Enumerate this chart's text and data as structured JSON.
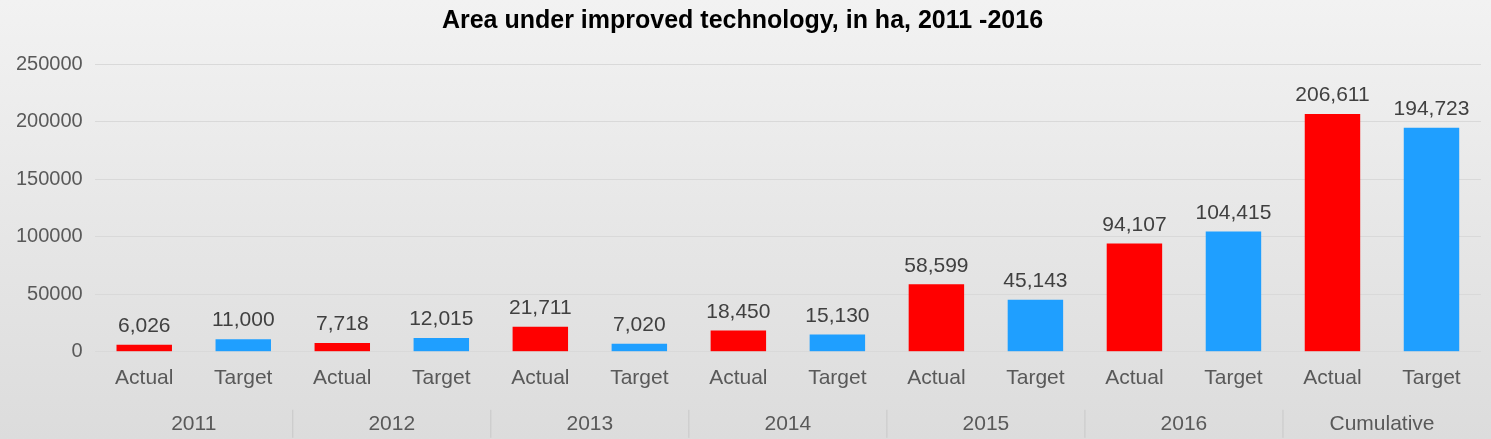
{
  "chart_data": {
    "type": "bar",
    "title": "Area under improved technology, in ha, 2011 -2016",
    "categories": [
      "Actual",
      "Target",
      "Actual",
      "Target",
      "Actual",
      "Target",
      "Actual",
      "Target",
      "Actual",
      "Target",
      "Actual",
      "Target",
      "Actual",
      "Target"
    ],
    "values": [
      6026,
      11000,
      7718,
      12015,
      21711,
      7020,
      18450,
      15130,
      58599,
      45143,
      94107,
      104415,
      206611,
      194723
    ],
    "value_labels": [
      "6,026",
      "11,000",
      "7,718",
      "12,015",
      "21,711",
      "7,020",
      "18,450",
      "15,130",
      "58,599",
      "45,143",
      "94,107",
      "104,415",
      "206,611",
      "194,723"
    ],
    "colors": [
      "#ff0000",
      "#1f9fff",
      "#ff0000",
      "#1f9fff",
      "#ff0000",
      "#1f9fff",
      "#ff0000",
      "#1f9fff",
      "#ff0000",
      "#1f9fff",
      "#ff0000",
      "#1f9fff",
      "#ff0000",
      "#1f9fff"
    ],
    "annotations": [
      "2011",
      "2012",
      "2013",
      "2014",
      "2015",
      "2016",
      "Cumulative"
    ],
    "ylim": [
      0,
      250000
    ],
    "yticks": [
      0,
      50000,
      100000,
      150000,
      200000,
      250000
    ],
    "grid": "y",
    "legend": false
  }
}
